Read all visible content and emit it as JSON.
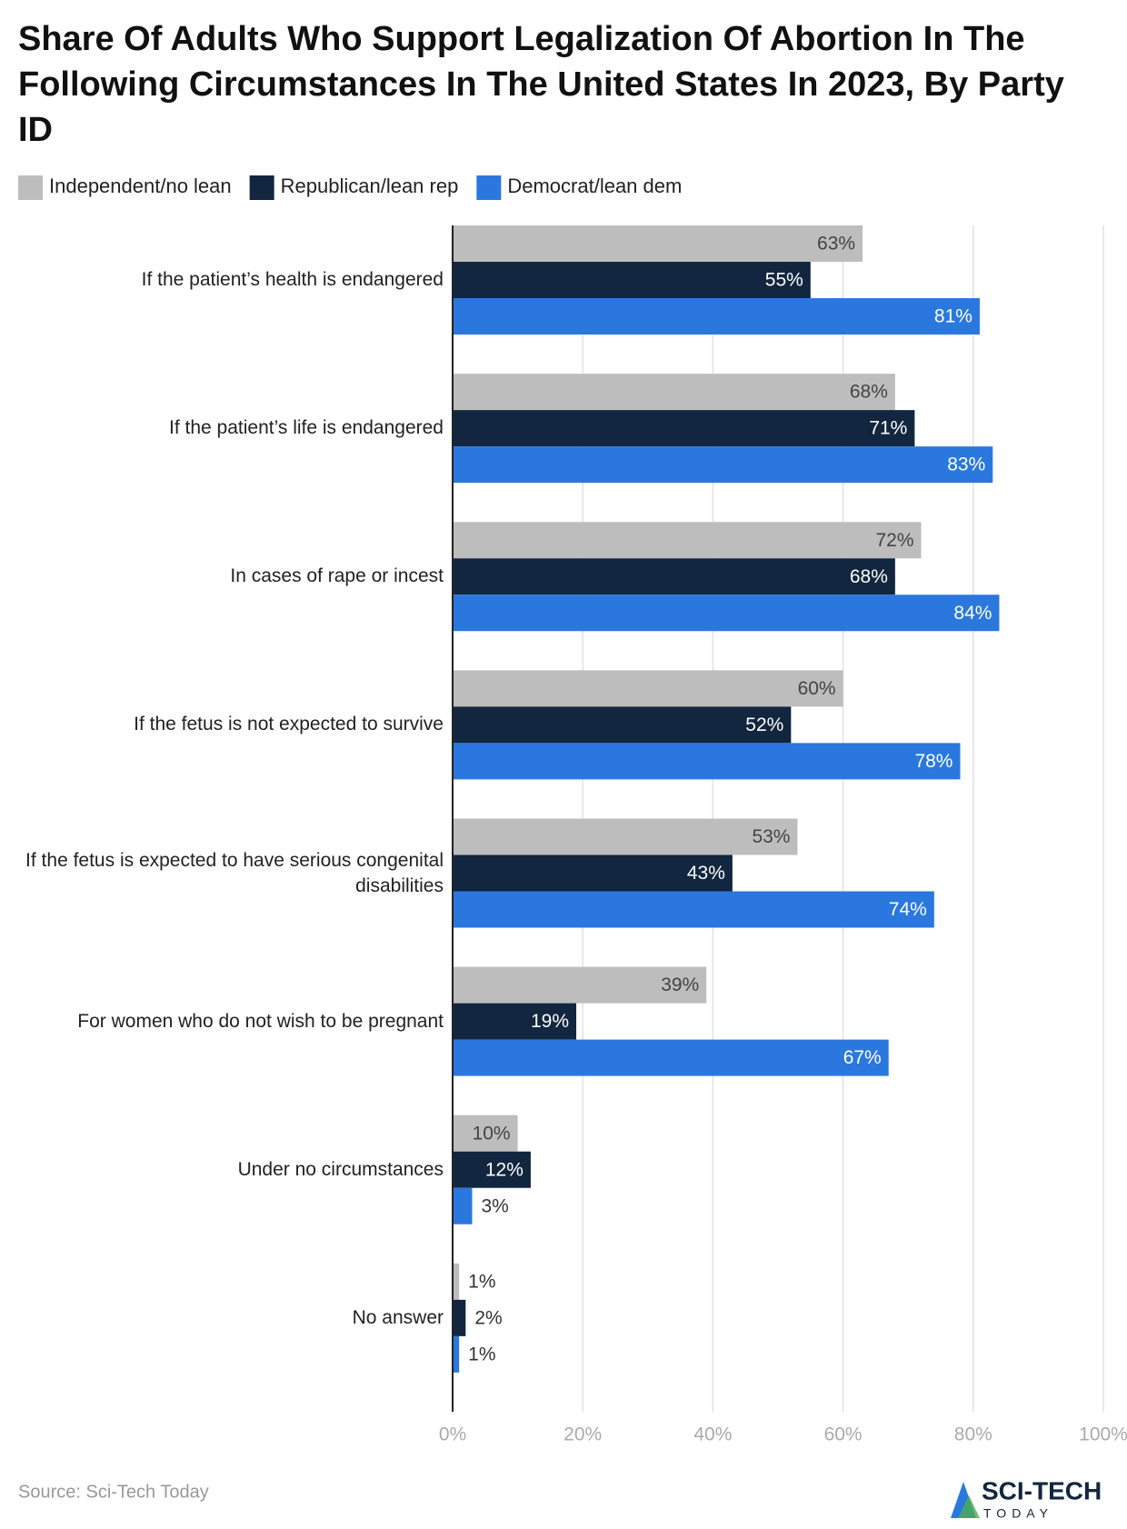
{
  "chart_data": {
    "type": "bar",
    "orientation": "horizontal",
    "title": "Share Of Adults Who Support Legalization Of Abortion In The Following Circumstances In The United States In 2023, By Party ID",
    "categories": [
      "If the patient’s health is endangered",
      "If the patient’s life is endangered",
      "In cases of rape or incest",
      "If the fetus is not expected to survive",
      "If the fetus is expected to have serious congenital disabilities",
      "For women who do not wish to be pregnant",
      "Under no circumstances",
      "No answer"
    ],
    "series": [
      {
        "name": "Independent/no lean",
        "color": "#bdbdbd",
        "values": [
          63,
          68,
          72,
          60,
          53,
          39,
          10,
          1
        ],
        "value_labels": [
          "63%",
          "68%",
          "72%",
          "60%",
          "53%",
          "39%",
          "10%",
          "1%"
        ]
      },
      {
        "name": "Republican/lean rep",
        "color": "#12263f",
        "values": [
          55,
          71,
          68,
          52,
          43,
          19,
          12,
          2
        ],
        "value_labels": [
          "55%",
          "71%",
          "68%",
          "52%",
          "43%",
          "19%",
          "12%",
          "2%"
        ]
      },
      {
        "name": "Democrat/lean dem",
        "color": "#2a78de",
        "values": [
          81,
          83,
          84,
          78,
          74,
          67,
          3,
          1
        ],
        "value_labels": [
          "81%",
          "83%",
          "84%",
          "78%",
          "74%",
          "67%",
          "3%",
          "1%"
        ]
      }
    ],
    "xlim": [
      0,
      100
    ],
    "xticks": [
      {
        "value": 0,
        "label": "0%"
      },
      {
        "value": 20,
        "label": "20%"
      },
      {
        "value": 40,
        "label": "40%"
      },
      {
        "value": 60,
        "label": "60%"
      },
      {
        "value": 80,
        "label": "80%"
      },
      {
        "value": 100,
        "label": "100%"
      }
    ],
    "grid": true,
    "legend": "top-left",
    "source": "Source: Sci-Tech Today"
  },
  "logo": {
    "name": "SCI-TECH",
    "tagline": "TODAY"
  }
}
